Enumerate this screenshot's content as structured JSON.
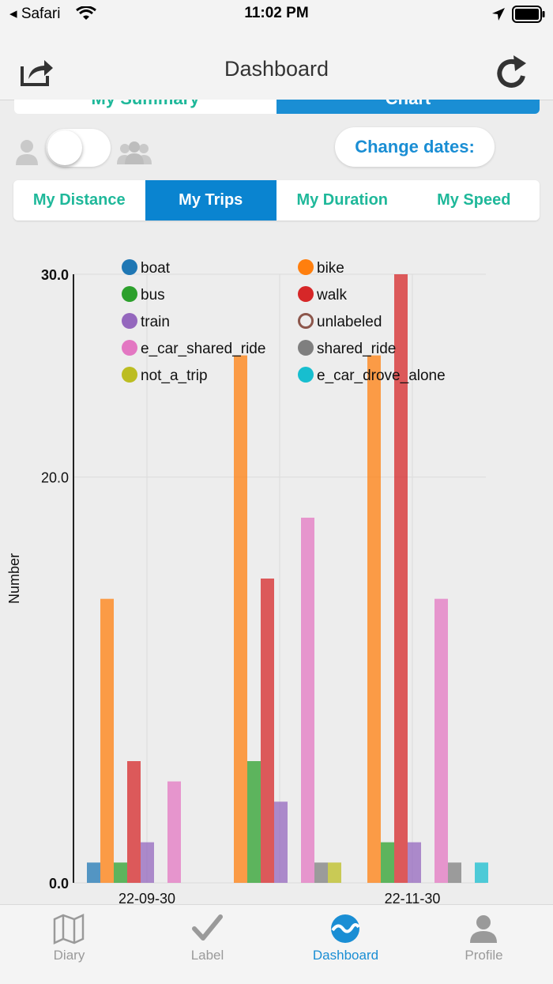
{
  "status_bar": {
    "carrier": "◂ Safari",
    "time": "11:02 PM"
  },
  "header": {
    "title": "Dashboard"
  },
  "summary_tabs": {
    "left": "My Summary",
    "right": "Chart"
  },
  "change_dates_label": "Change dates:",
  "metric_tabs": [
    {
      "label": "My Distance",
      "active": false
    },
    {
      "label": "My Trips",
      "active": true
    },
    {
      "label": "My Duration",
      "active": false
    },
    {
      "label": "My Speed",
      "active": false
    }
  ],
  "tabbar": [
    {
      "label": "Diary",
      "icon": "map-icon",
      "active": false
    },
    {
      "label": "Label",
      "icon": "checkmark-icon",
      "active": false
    },
    {
      "label": "Dashboard",
      "icon": "wave-icon",
      "active": true
    },
    {
      "label": "Profile",
      "icon": "person-icon",
      "active": false
    }
  ],
  "chart_data": {
    "type": "bar",
    "ylabel": "Number",
    "xlabel": "",
    "ylim": [
      0,
      30
    ],
    "yticks": [
      "0.0",
      "20.0",
      "30.0"
    ],
    "categories": [
      "22-09-30",
      "22-10-31",
      "22-11-30"
    ],
    "category_labels_shown": [
      "22-09-30",
      "",
      "22-11-30"
    ],
    "grid": true,
    "legend_placement": "top",
    "series": [
      {
        "name": "boat",
        "color": "#1f77b4",
        "values": [
          1,
          0,
          0
        ]
      },
      {
        "name": "bike",
        "color": "#ff7f0e",
        "values": [
          14,
          26,
          26
        ]
      },
      {
        "name": "bus",
        "color": "#2ca02c",
        "values": [
          1,
          6,
          2
        ]
      },
      {
        "name": "walk",
        "color": "#d62728",
        "values": [
          6,
          15,
          30
        ]
      },
      {
        "name": "train",
        "color": "#9467bd",
        "values": [
          2,
          4,
          2
        ]
      },
      {
        "name": "unlabeled",
        "color": "#8c564b",
        "values": [
          0,
          0,
          0
        ]
      },
      {
        "name": "e_car_shared_ride",
        "color": "#e377c2",
        "values": [
          5,
          18,
          14
        ]
      },
      {
        "name": "shared_ride",
        "color": "#7f7f7f",
        "values": [
          0,
          1,
          1
        ]
      },
      {
        "name": "not_a_trip",
        "color": "#bcbd22",
        "values": [
          0,
          1,
          0
        ]
      },
      {
        "name": "e_car_drove_alone",
        "color": "#17becf",
        "values": [
          0,
          0,
          1
        ]
      }
    ]
  }
}
